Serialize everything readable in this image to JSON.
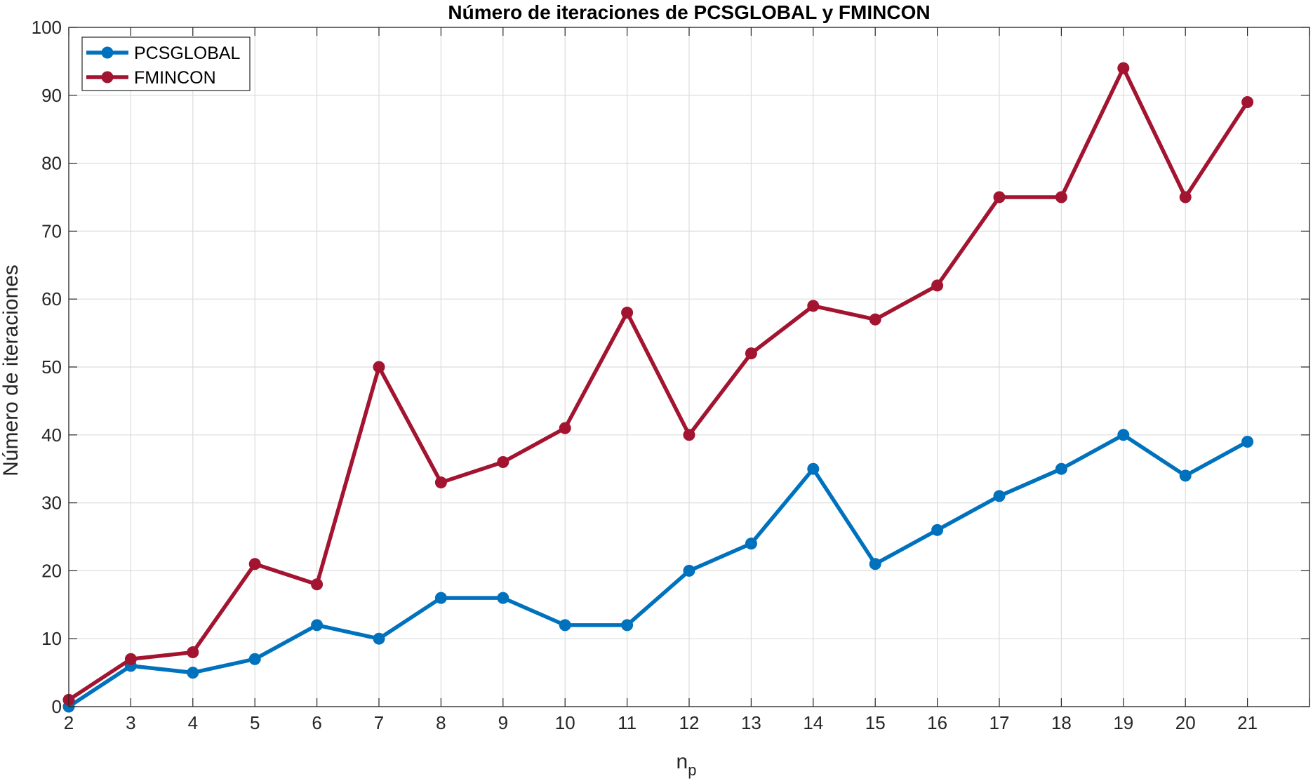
{
  "chart_data": {
    "type": "line",
    "title": "Número de iteraciones de PCSGLOBAL y FMINCON",
    "xlabel": {
      "main": "n",
      "subscript": "p"
    },
    "ylabel": "Número de iteraciones",
    "x": [
      2,
      3,
      4,
      5,
      6,
      7,
      8,
      9,
      10,
      11,
      12,
      13,
      14,
      15,
      16,
      17,
      18,
      19,
      20,
      21
    ],
    "xlim": [
      2,
      22
    ],
    "ylim": [
      0,
      100
    ],
    "xticks": [
      2,
      3,
      4,
      5,
      6,
      7,
      8,
      9,
      10,
      11,
      12,
      13,
      14,
      15,
      16,
      17,
      18,
      19,
      20,
      21
    ],
    "yticks": [
      0,
      10,
      20,
      30,
      40,
      50,
      60,
      70,
      80,
      90,
      100
    ],
    "grid": true,
    "legend_position": "top-left",
    "series": [
      {
        "name": "PCSGLOBAL",
        "color": "#0072BD",
        "values": [
          0,
          6,
          5,
          7,
          12,
          10,
          16,
          16,
          12,
          12,
          20,
          24,
          35,
          21,
          26,
          31,
          35,
          40,
          34,
          39
        ]
      },
      {
        "name": "FMINCON",
        "color": "#A2142F",
        "values": [
          1,
          7,
          8,
          21,
          18,
          50,
          33,
          36,
          41,
          58,
          40,
          52,
          59,
          57,
          62,
          75,
          75,
          94,
          75,
          89
        ]
      }
    ]
  }
}
